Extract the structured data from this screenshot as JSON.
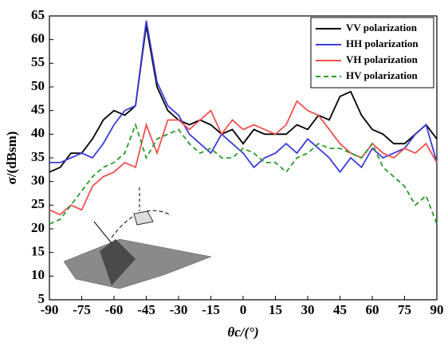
{
  "chart_data": {
    "type": "line",
    "x_label": "θc/(°)",
    "y_label": "σ/(dBsm)",
    "x": [
      -90,
      -85,
      -80,
      -75,
      -70,
      -65,
      -60,
      -55,
      -50,
      -45,
      -40,
      -35,
      -30,
      -25,
      -20,
      -15,
      -10,
      -5,
      0,
      5,
      10,
      15,
      20,
      25,
      30,
      35,
      40,
      45,
      50,
      55,
      60,
      65,
      70,
      75,
      80,
      85,
      90
    ],
    "series": [
      {
        "name": "VV polarization",
        "color": "#000000",
        "dash": false,
        "values": [
          32,
          33,
          36,
          36,
          39,
          43,
          45,
          44,
          46,
          63,
          50,
          45,
          43,
          42,
          43,
          42,
          40,
          41,
          38,
          41,
          40,
          40,
          40,
          42,
          41,
          44,
          43,
          48,
          49,
          44,
          41,
          40,
          38,
          38,
          40,
          42,
          39
        ]
      },
      {
        "name": "HH polarization",
        "color": "#3b3bdb",
        "dash": false,
        "values": [
          34,
          34,
          35,
          36,
          35,
          38,
          42,
          45,
          46,
          64,
          51,
          46,
          44,
          40,
          38,
          36,
          40,
          38,
          36,
          33,
          35,
          36,
          38,
          36,
          39,
          37,
          35,
          32,
          35,
          33,
          37,
          35,
          36,
          37,
          40,
          42,
          34
        ]
      },
      {
        "name": "VH polarization",
        "color": "#f05050",
        "dash": false,
        "values": [
          24,
          23,
          25,
          24,
          29,
          31,
          32,
          34,
          33,
          42,
          36,
          43,
          43,
          41,
          43,
          45,
          40,
          43,
          41,
          42,
          41,
          40,
          42,
          47,
          45,
          44,
          41,
          38,
          36,
          35,
          38,
          36,
          35,
          37,
          36,
          38,
          34
        ]
      },
      {
        "name": "HV polarization",
        "color": "#2a9a2a",
        "dash": true,
        "values": [
          21,
          22,
          25,
          28,
          31,
          33,
          34,
          36,
          42,
          35,
          39,
          40,
          41,
          38,
          36,
          37,
          35,
          35,
          37,
          36,
          34,
          34,
          32,
          35,
          36,
          38,
          37,
          37,
          36,
          35,
          38,
          33,
          31,
          29,
          25,
          27,
          21
        ]
      }
    ],
    "xlim": [
      -90,
      90
    ],
    "xticks": [
      -90,
      -75,
      -60,
      -45,
      -30,
      -15,
      0,
      15,
      30,
      45,
      60,
      75,
      90
    ],
    "ylim": [
      5,
      65
    ],
    "yticks": [
      5,
      10,
      15,
      20,
      25,
      30,
      35,
      40,
      45,
      50,
      55,
      60,
      65
    ],
    "legend": "upper right"
  }
}
